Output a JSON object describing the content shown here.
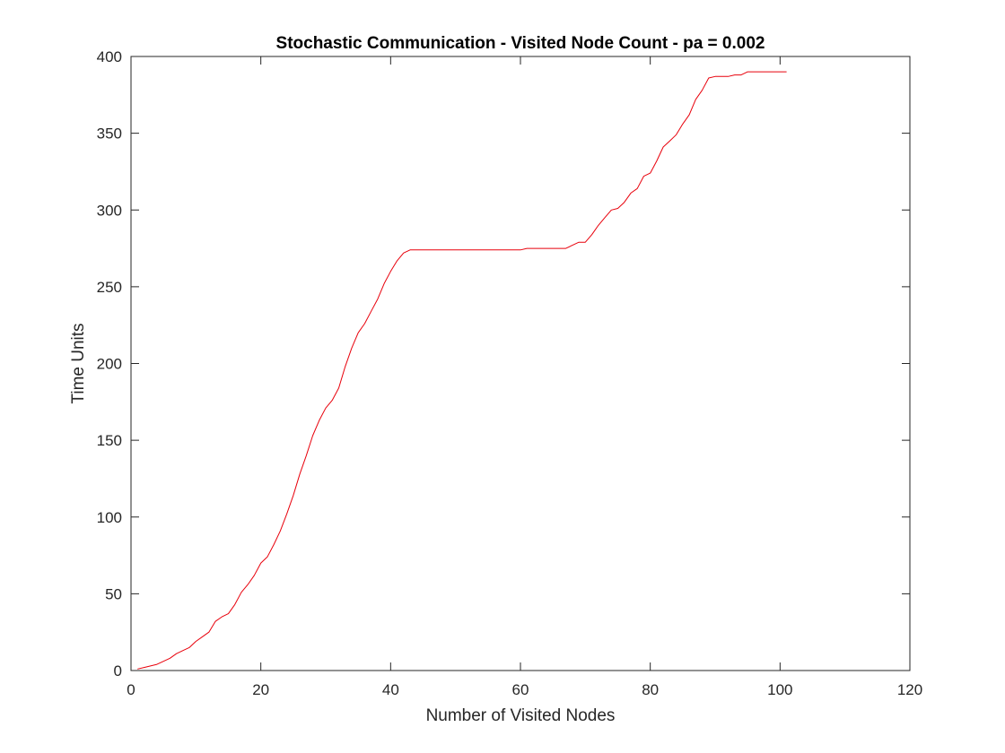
{
  "chart_data": {
    "type": "line",
    "title": "Stochastic Communication - Visited Node Count - pa = 0.002",
    "xlabel": "Number of Visited Nodes",
    "ylabel": "Time Units",
    "xlim": [
      0,
      120
    ],
    "ylim": [
      0,
      400
    ],
    "xticks": [
      "0",
      "20",
      "40",
      "60",
      "80",
      "100",
      "120"
    ],
    "yticks": [
      "0",
      "50",
      "100",
      "150",
      "200",
      "250",
      "300",
      "350",
      "400"
    ],
    "grid": false,
    "legend": "none",
    "series": [
      {
        "color": "#e8000b",
        "x": [
          1,
          2,
          3,
          4,
          5,
          6,
          7,
          8,
          9,
          10,
          11,
          12,
          13,
          14,
          15,
          16,
          17,
          18,
          19,
          20,
          21,
          22,
          23,
          24,
          25,
          26,
          27,
          28,
          29,
          30,
          31,
          32,
          33,
          34,
          35,
          36,
          37,
          38,
          39,
          40,
          41,
          42,
          43,
          44,
          45,
          50,
          55,
          60,
          61,
          62,
          65,
          67,
          68,
          69,
          70,
          71,
          72,
          73,
          74,
          75,
          76,
          77,
          78,
          79,
          80,
          81,
          82,
          83,
          84,
          85,
          86,
          87,
          88,
          89,
          90,
          91,
          92,
          93,
          94,
          95,
          96,
          97,
          98,
          99,
          100,
          101
        ],
        "y": [
          1,
          2,
          3,
          4,
          6,
          8,
          11,
          13,
          15,
          19,
          22,
          25,
          32,
          35,
          37,
          43,
          51,
          56,
          62,
          70,
          74,
          82,
          91,
          102,
          114,
          128,
          140,
          153,
          163,
          171,
          176,
          184,
          198,
          210,
          220,
          226,
          234,
          242,
          252,
          260,
          267,
          272,
          274,
          274,
          274,
          274,
          274,
          274,
          275,
          275,
          275,
          275,
          277,
          279,
          279,
          284,
          290,
          295,
          300,
          301,
          305,
          311,
          314,
          322,
          324,
          332,
          341,
          345,
          349,
          356,
          362,
          372,
          378,
          386,
          387,
          387,
          387,
          388,
          388,
          390,
          390,
          390,
          390,
          390,
          390,
          390
        ]
      }
    ]
  }
}
